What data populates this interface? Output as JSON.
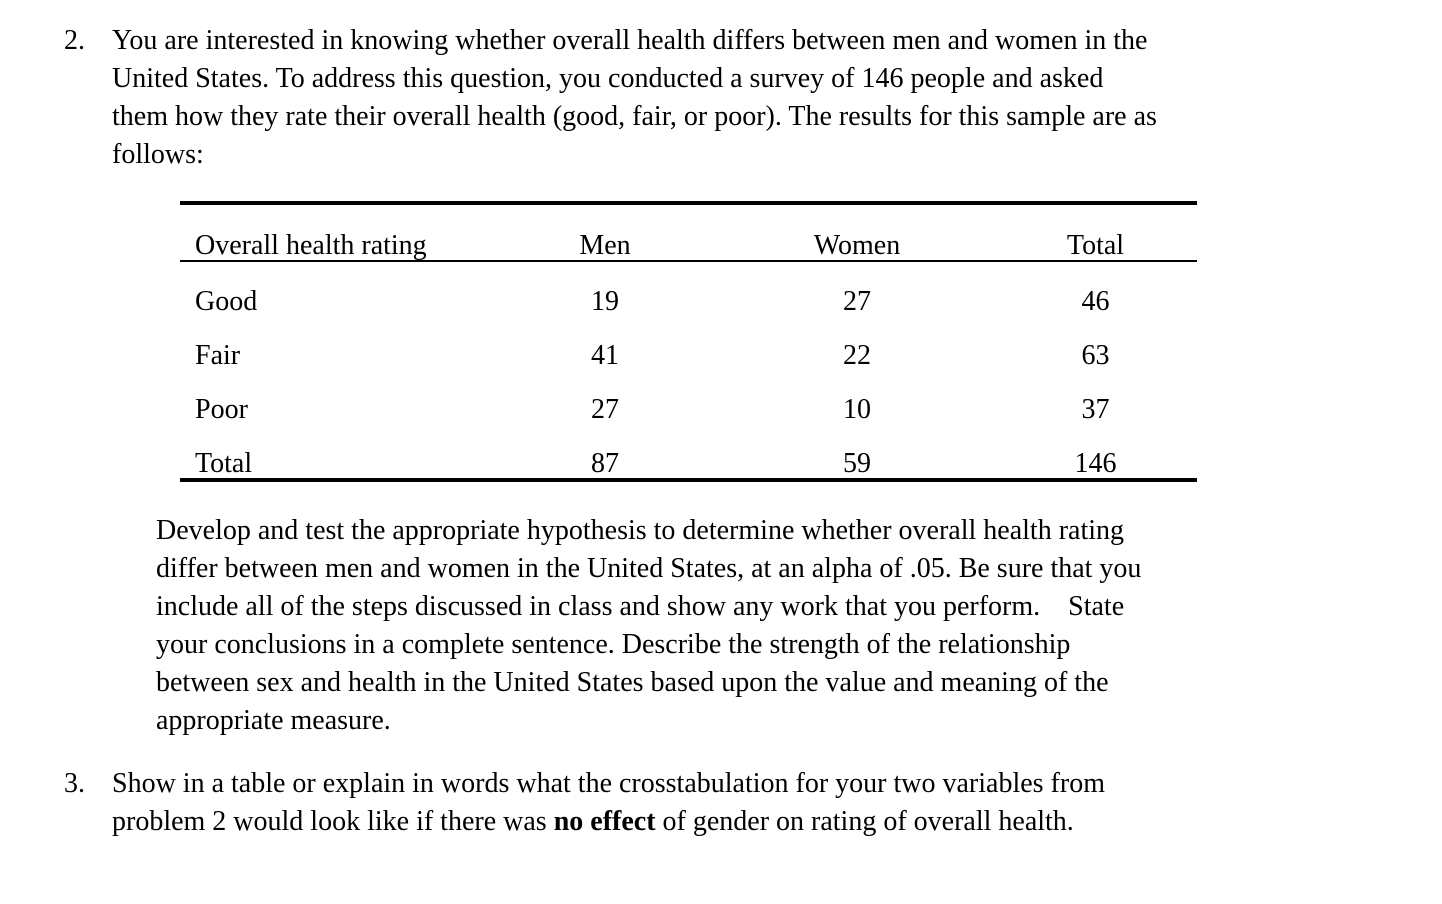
{
  "document": {
    "background": "#ffffff",
    "text_color": "#000000"
  },
  "problem2": {
    "number": "2.",
    "intro": "You are interested in knowing whether overall health differs between men and women in the\nUnited States. To address this question, you conducted a survey of 146 people and asked\nthem how they rate their overall health (good, fair, or poor). The results for this sample are as\nfollows:",
    "instructions": "Develop and test the appropriate hypothesis to determine whether overall health rating\ndiffer between men and women in the United States, at an alpha of .05. Be sure that you\ninclude all of the steps discussed in class and show any work that you perform.    State\nyour conclusions in a complete sentence. Describe the strength of the relationship\nbetween sex and health in the United States based upon the value and meaning of the\nappropriate measure."
  },
  "table": {
    "headers": {
      "rating": "Overall health rating",
      "men": "Men",
      "women": "Women",
      "total": "Total"
    },
    "rows": [
      {
        "rating": "Good",
        "men": "19",
        "women": "27",
        "total": "46"
      },
      {
        "rating": "Fair",
        "men": "41",
        "women": "22",
        "total": "63"
      },
      {
        "rating": "Poor",
        "men": "27",
        "women": "10",
        "total": "37"
      },
      {
        "rating": "Total",
        "men": "87",
        "women": "59",
        "total": "146"
      }
    ]
  },
  "problem3": {
    "number": "3.",
    "text_start": "Show in a table or explain in words what the crosstabulation for your two variables from\nproblem 2 would look like if there was ",
    "text_bold": "no effect",
    "text_end": " of gender on rating of overall health."
  }
}
